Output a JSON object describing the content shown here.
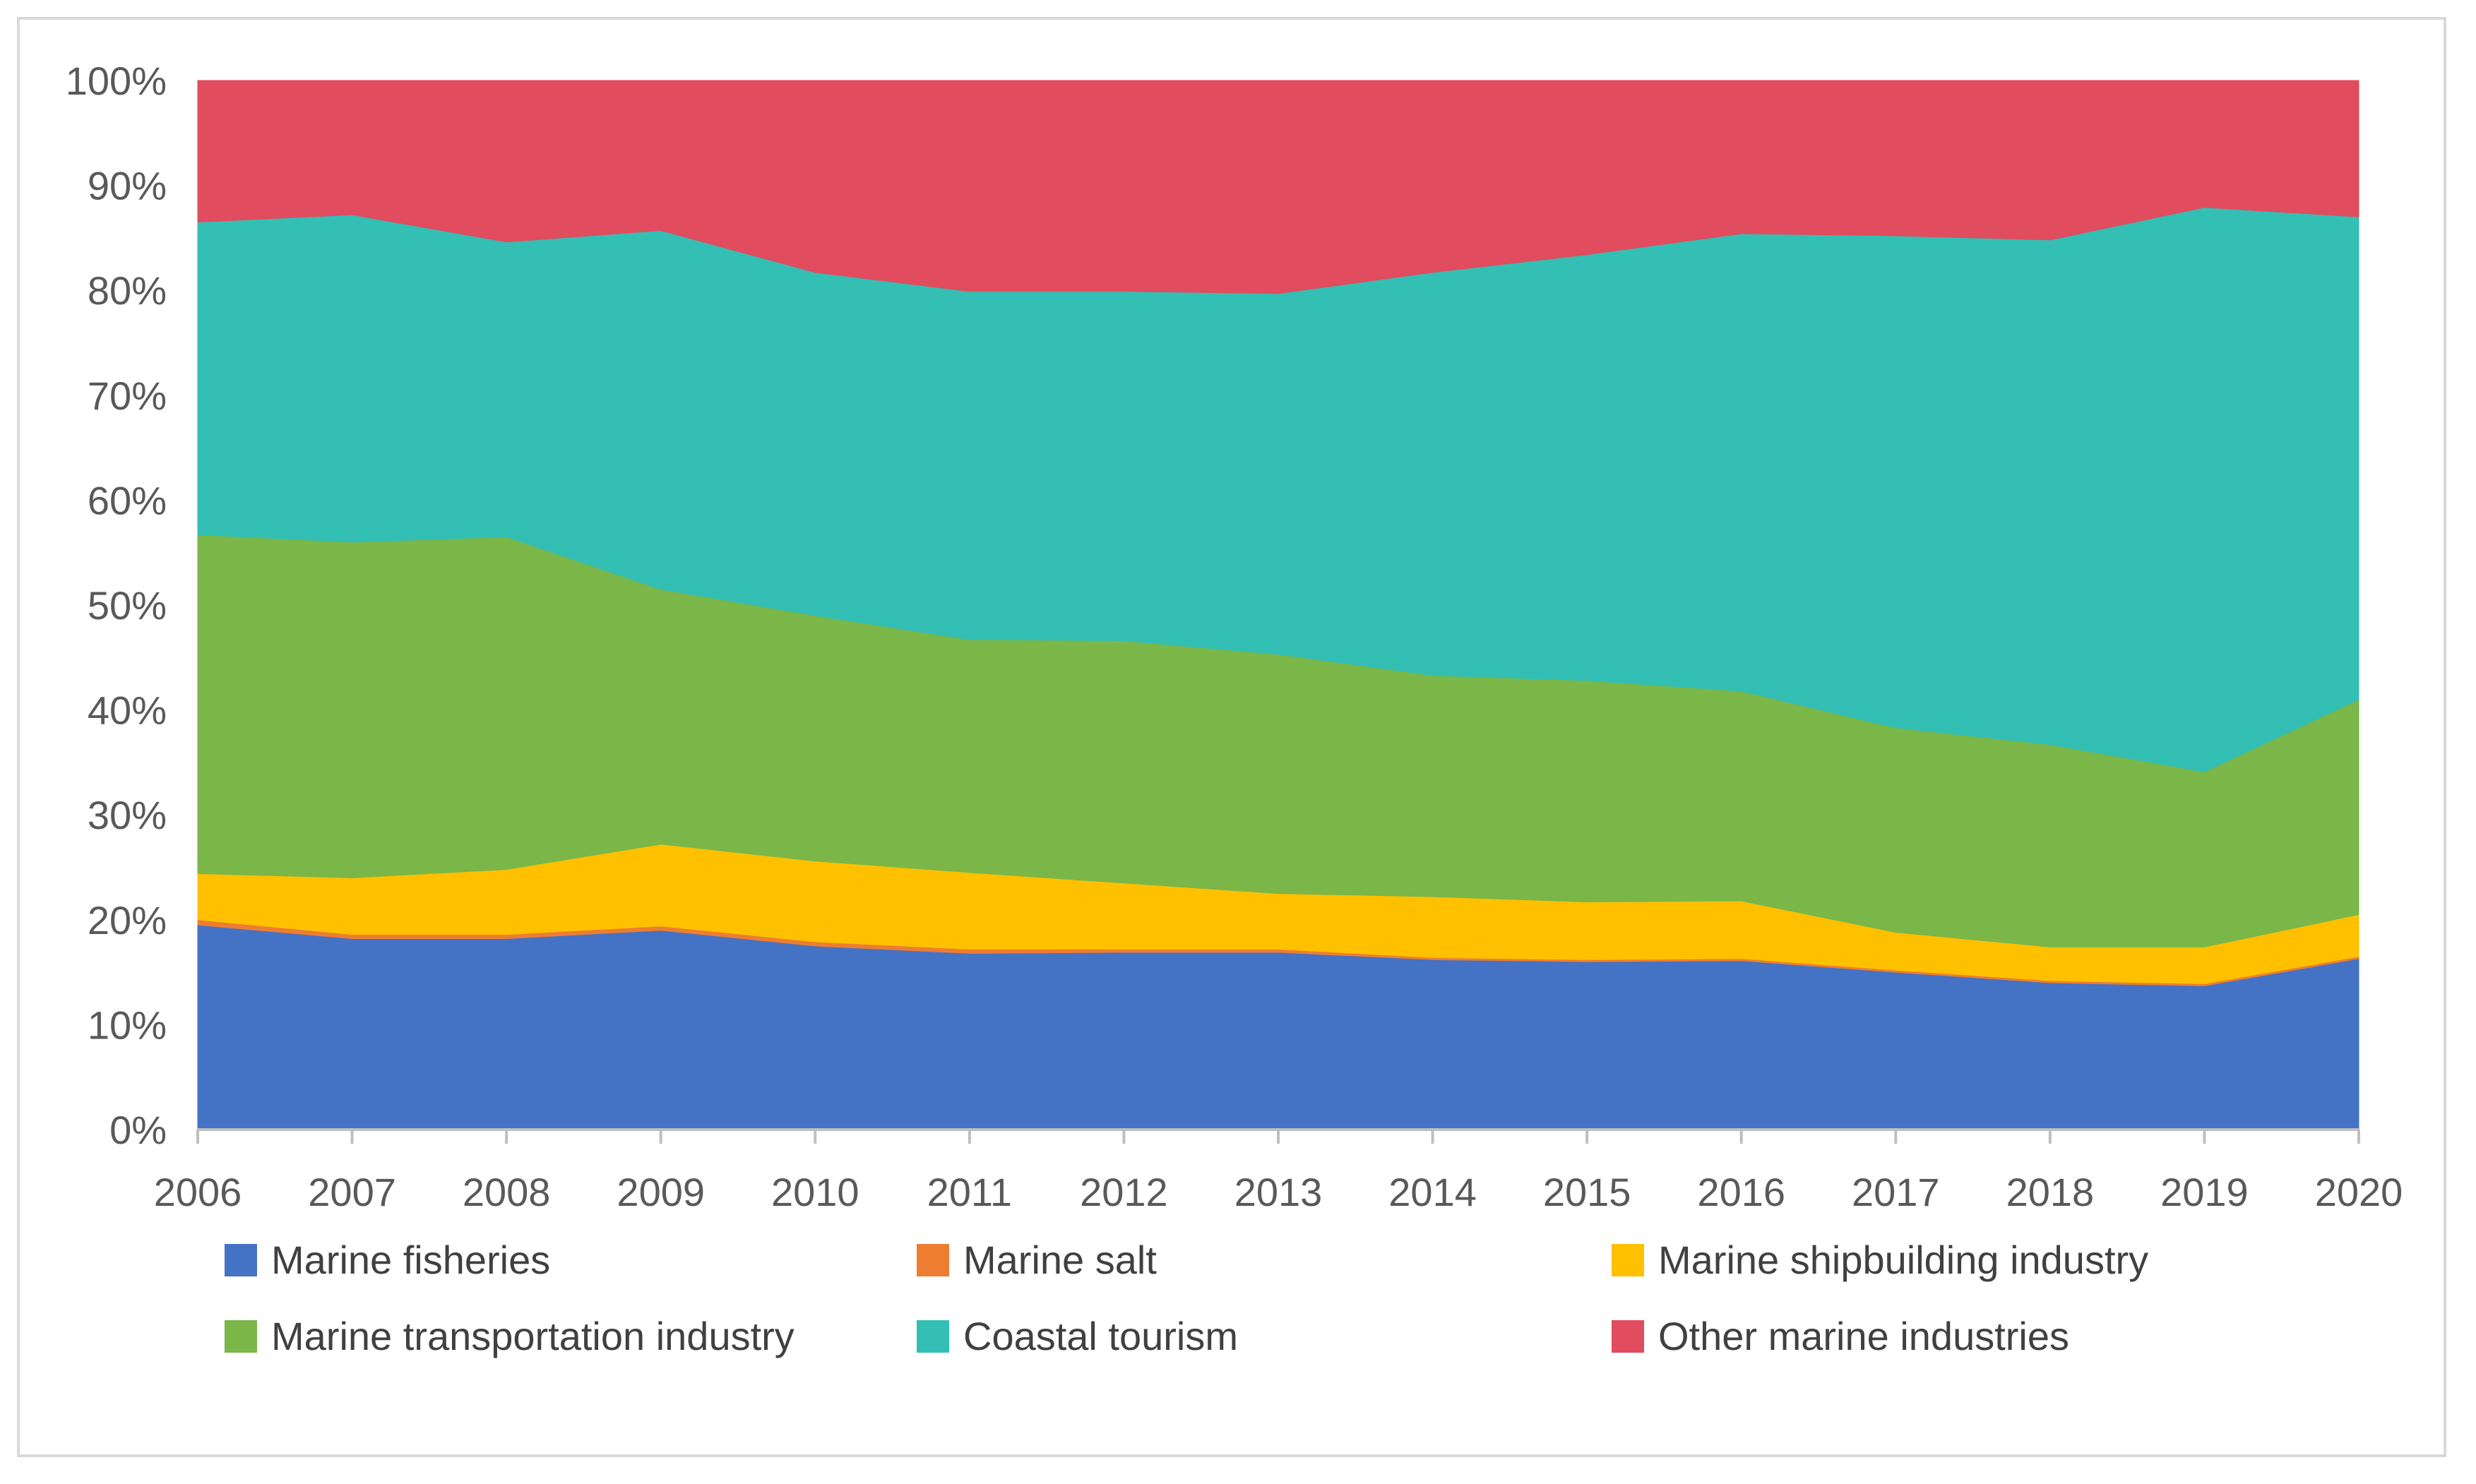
{
  "chart_data": {
    "type": "area",
    "stacked": true,
    "normalized": true,
    "title": "",
    "xlabel": "",
    "ylabel": "",
    "x": [
      "2006",
      "2007",
      "2008",
      "2009",
      "2010",
      "2011",
      "2012",
      "2013",
      "2014",
      "2015",
      "2016",
      "2017",
      "2018",
      "2019",
      "2020"
    ],
    "y_ticks": [
      "0%",
      "10%",
      "20%",
      "30%",
      "40%",
      "50%",
      "60%",
      "70%",
      "80%",
      "90%",
      "100%"
    ],
    "ylim": [
      0,
      100
    ],
    "grid": false,
    "legend_position": "bottom",
    "series": [
      {
        "name": "Marine fisheries",
        "color": "#4472c4",
        "values": [
          19.5,
          18.2,
          18.2,
          19.0,
          17.5,
          16.8,
          16.9,
          16.9,
          16.2,
          16.0,
          16.1,
          15.0,
          14.0,
          13.7,
          16.3
        ]
      },
      {
        "name": "Marine salt",
        "color": "#ed7d31",
        "values": [
          0.5,
          0.4,
          0.4,
          0.4,
          0.4,
          0.4,
          0.3,
          0.3,
          0.2,
          0.2,
          0.2,
          0.2,
          0.2,
          0.2,
          0.2
        ]
      },
      {
        "name": "Marine shipbuilding industry",
        "color": "#ffc000",
        "values": [
          4.4,
          5.4,
          6.2,
          7.8,
          7.7,
          7.3,
          6.3,
          5.3,
          5.8,
          5.5,
          5.5,
          3.6,
          3.2,
          3.5,
          4.0
        ]
      },
      {
        "name": "Marine transportation industry",
        "color": "#7ab648",
        "values": [
          32.3,
          32.0,
          31.7,
          24.3,
          23.4,
          22.2,
          23.1,
          22.8,
          21.1,
          21.1,
          20.0,
          19.5,
          19.3,
          16.7,
          20.5
        ]
      },
      {
        "name": "Coastal tourism",
        "color": "#33bfb4",
        "values": [
          29.8,
          31.2,
          28.1,
          34.2,
          32.7,
          33.2,
          33.3,
          34.4,
          38.4,
          40.6,
          43.6,
          46.9,
          48.1,
          53.8,
          46.0
        ]
      },
      {
        "name": "Other marine industries",
        "color": "#e14c5e",
        "values": [
          13.5,
          12.8,
          15.4,
          14.3,
          18.3,
          20.1,
          20.1,
          20.3,
          18.3,
          16.6,
          14.6,
          14.8,
          15.2,
          12.1,
          13.0
        ]
      }
    ]
  }
}
